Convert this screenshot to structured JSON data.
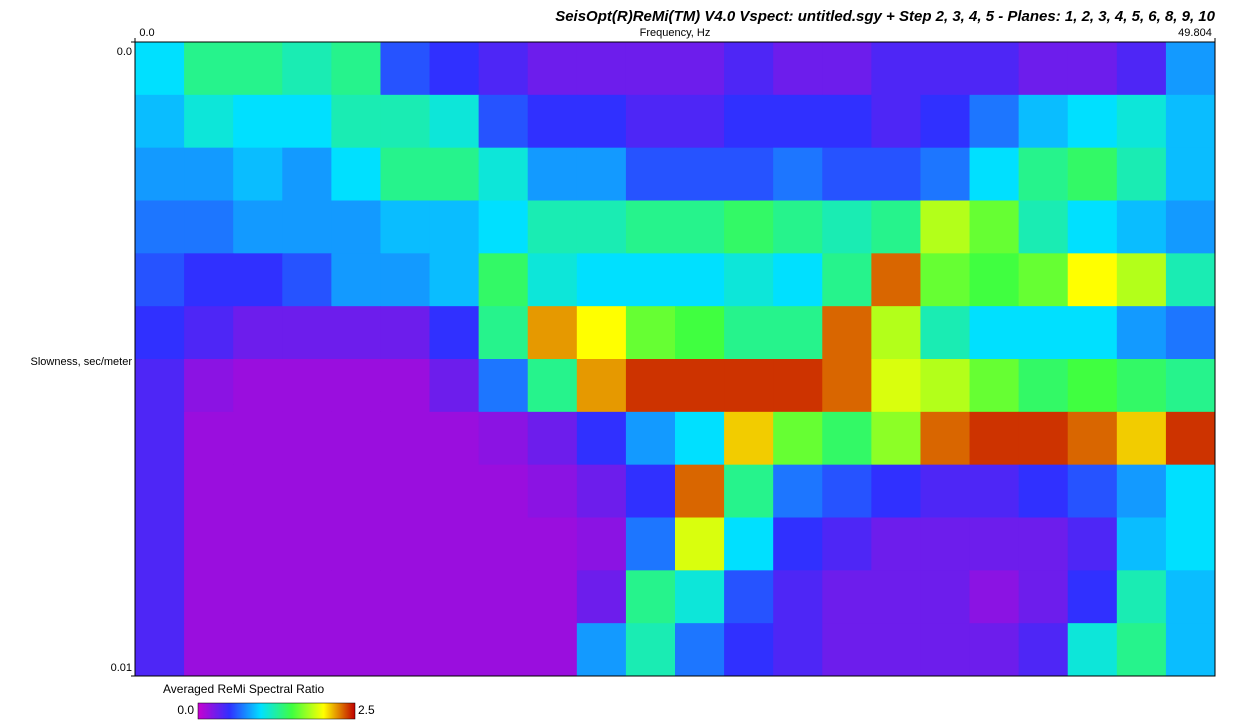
{
  "chart_data": {
    "type": "heatmap",
    "title": "SeisOpt(R)ReMi(TM) V4.0 Vspect: untitled.sgy + Step 2,  3,  4, 5 - Planes: 1, 2, 3, 4, 5, 6, 8, 9, 10",
    "x_label": "Frequency, Hz",
    "y_label": "Slowness, sec/meter",
    "colorbar_label": "Averaged ReMi Spectral Ratio",
    "xlim": [
      0,
      49.804
    ],
    "xticks": [
      {
        "value": 0,
        "label": "0.0"
      },
      49.804
    ],
    "ylim": [
      0,
      0.01
    ],
    "yticks": [
      {
        "value": 0,
        "label": "0.0"
      },
      0.01
    ],
    "y_inverted": true,
    "zlim": [
      0,
      2.5
    ],
    "zticks": [
      {
        "value": 0,
        "label": "0.0"
      },
      2.5
    ],
    "colorscale": [
      "#c800d0",
      "#3030ff",
      "#00e0ff",
      "#40ff40",
      "#ffff00",
      "#c00000"
    ],
    "z": [
      [
        1.0,
        1.3,
        1.3,
        1.2,
        1.3,
        0.6,
        0.5,
        0.4,
        0.3,
        0.3,
        0.3,
        0.3,
        0.4,
        0.3,
        0.3,
        0.4,
        0.4,
        0.4,
        0.3,
        0.3,
        0.4,
        0.8
      ],
      [
        0.9,
        1.1,
        1.0,
        1.0,
        1.2,
        1.2,
        1.1,
        0.6,
        0.5,
        0.5,
        0.4,
        0.4,
        0.5,
        0.5,
        0.5,
        0.4,
        0.5,
        0.7,
        0.9,
        1.0,
        1.1,
        0.9
      ],
      [
        0.8,
        0.8,
        0.9,
        0.8,
        1.0,
        1.3,
        1.3,
        1.1,
        0.8,
        0.8,
        0.6,
        0.6,
        0.6,
        0.7,
        0.6,
        0.6,
        0.7,
        1.0,
        1.3,
        1.4,
        1.2,
        0.9
      ],
      [
        0.7,
        0.7,
        0.8,
        0.8,
        0.8,
        0.9,
        0.9,
        1.0,
        1.2,
        1.2,
        1.3,
        1.3,
        1.4,
        1.3,
        1.2,
        1.3,
        1.8,
        1.6,
        1.2,
        1.0,
        0.9,
        0.8
      ],
      [
        0.6,
        0.5,
        0.5,
        0.6,
        0.8,
        0.8,
        0.9,
        1.4,
        1.1,
        1.0,
        1.0,
        1.0,
        1.1,
        1.0,
        1.3,
        2.3,
        1.6,
        1.5,
        1.6,
        2.0,
        1.8,
        1.2
      ],
      [
        0.5,
        0.4,
        0.3,
        0.3,
        0.3,
        0.3,
        0.5,
        1.3,
        2.2,
        2.0,
        1.6,
        1.5,
        1.3,
        1.3,
        2.3,
        1.8,
        1.2,
        1.0,
        1.0,
        1.0,
        0.8,
        0.7
      ],
      [
        0.4,
        0.2,
        0.15,
        0.15,
        0.15,
        0.15,
        0.3,
        0.7,
        1.3,
        2.2,
        2.4,
        2.4,
        2.4,
        2.4,
        2.3,
        1.9,
        1.8,
        1.6,
        1.4,
        1.5,
        1.4,
        1.3
      ],
      [
        0.4,
        0.15,
        0.15,
        0.15,
        0.15,
        0.15,
        0.15,
        0.2,
        0.3,
        0.5,
        0.8,
        1.0,
        2.1,
        1.6,
        1.4,
        1.7,
        2.3,
        2.4,
        2.4,
        2.3,
        2.1,
        2.4
      ],
      [
        0.4,
        0.15,
        0.15,
        0.15,
        0.15,
        0.15,
        0.15,
        0.15,
        0.2,
        0.3,
        0.5,
        2.3,
        1.3,
        0.7,
        0.6,
        0.5,
        0.4,
        0.4,
        0.5,
        0.6,
        0.8,
        1.0
      ],
      [
        0.4,
        0.15,
        0.15,
        0.15,
        0.15,
        0.15,
        0.15,
        0.15,
        0.15,
        0.2,
        0.7,
        1.9,
        1.0,
        0.5,
        0.4,
        0.3,
        0.3,
        0.3,
        0.3,
        0.4,
        0.9,
        1.0
      ],
      [
        0.4,
        0.15,
        0.15,
        0.15,
        0.15,
        0.15,
        0.15,
        0.15,
        0.15,
        0.3,
        1.3,
        1.1,
        0.6,
        0.4,
        0.3,
        0.3,
        0.3,
        0.2,
        0.3,
        0.5,
        1.2,
        0.9
      ],
      [
        0.4,
        0.15,
        0.15,
        0.15,
        0.15,
        0.15,
        0.15,
        0.15,
        0.15,
        0.8,
        1.2,
        0.7,
        0.5,
        0.4,
        0.3,
        0.3,
        0.3,
        0.3,
        0.4,
        1.1,
        1.3,
        0.9
      ]
    ]
  }
}
